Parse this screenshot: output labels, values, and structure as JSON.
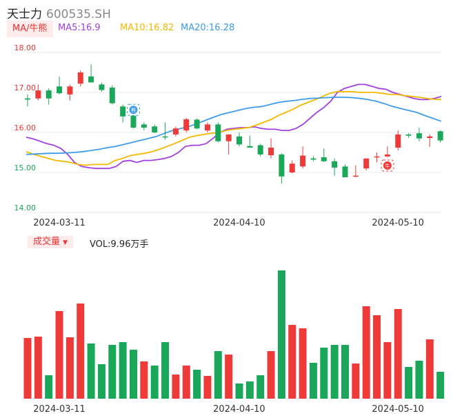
{
  "header": {
    "name": "天士力",
    "code": "600535.SH"
  },
  "ma_panel": {
    "tab_label": "MA/牛熊",
    "ma5": "MA5:16.9",
    "ma10": "MA10:16.82",
    "ma20": "MA20:16.28",
    "colors": {
      "ma5": "#a040e0",
      "ma10": "#f5b800",
      "ma20": "#3d9be9"
    }
  },
  "volume_panel": {
    "tab_label": "成交量",
    "dropdown": "▼",
    "vol_label": "VOL:9.96万手"
  },
  "chart_data": [
    {
      "type": "candlestick",
      "ylim": [
        14.0,
        18.0
      ],
      "yticks": [
        "18.00",
        "17.00",
        "16.00",
        "15.00",
        "14.00"
      ],
      "xticks": [
        {
          "label": "2024-03-11",
          "index": 0
        },
        {
          "label": "2024-04-10",
          "index": 17
        },
        {
          "label": "2024-05-10",
          "index": 32
        }
      ],
      "up_color": "#ef3a3a",
      "down_color": "#1aa75a",
      "markers": [
        {
          "index": 10,
          "symbol": "熊",
          "color": "#3d9be9"
        },
        {
          "index": 34,
          "symbol": "牛",
          "color": "#ef3a3a"
        }
      ],
      "candles": [
        {
          "o": 16.85,
          "h": 16.95,
          "l": 16.65,
          "c": 16.82
        },
        {
          "o": 16.85,
          "h": 17.2,
          "l": 16.8,
          "c": 17.05
        },
        {
          "o": 17.05,
          "h": 17.1,
          "l": 16.7,
          "c": 16.85
        },
        {
          "o": 17.15,
          "h": 17.4,
          "l": 16.95,
          "c": 16.98
        },
        {
          "o": 16.95,
          "h": 17.2,
          "l": 16.8,
          "c": 17.15
        },
        {
          "o": 17.22,
          "h": 17.55,
          "l": 17.15,
          "c": 17.5
        },
        {
          "o": 17.4,
          "h": 17.7,
          "l": 17.25,
          "c": 17.25
        },
        {
          "o": 17.2,
          "h": 17.25,
          "l": 17.02,
          "c": 17.06
        },
        {
          "o": 17.12,
          "h": 17.18,
          "l": 16.7,
          "c": 16.73
        },
        {
          "o": 16.65,
          "h": 16.7,
          "l": 16.25,
          "c": 16.4
        },
        {
          "o": 16.42,
          "h": 16.6,
          "l": 16.1,
          "c": 16.12
        },
        {
          "o": 16.2,
          "h": 16.25,
          "l": 16.05,
          "c": 16.12
        },
        {
          "o": 16.15,
          "h": 16.2,
          "l": 15.98,
          "c": 16.0
        },
        {
          "o": 15.9,
          "h": 16.25,
          "l": 15.82,
          "c": 15.88
        },
        {
          "o": 15.95,
          "h": 16.15,
          "l": 15.9,
          "c": 16.1
        },
        {
          "o": 16.05,
          "h": 16.36,
          "l": 16.0,
          "c": 16.33
        },
        {
          "o": 16.32,
          "h": 16.35,
          "l": 16.08,
          "c": 16.1
        },
        {
          "o": 16.05,
          "h": 16.25,
          "l": 16.0,
          "c": 16.2
        },
        {
          "o": 16.2,
          "h": 16.25,
          "l": 15.75,
          "c": 15.78
        },
        {
          "o": 15.78,
          "h": 15.95,
          "l": 15.45,
          "c": 15.95
        },
        {
          "o": 15.9,
          "h": 16.0,
          "l": 15.65,
          "c": 15.7
        },
        {
          "o": 15.66,
          "h": 15.92,
          "l": 15.62,
          "c": 15.62
        },
        {
          "o": 15.68,
          "h": 15.72,
          "l": 15.4,
          "c": 15.45
        },
        {
          "o": 15.43,
          "h": 15.85,
          "l": 15.35,
          "c": 15.62
        },
        {
          "o": 15.45,
          "h": 15.48,
          "l": 14.72,
          "c": 14.9
        },
        {
          "o": 15.0,
          "h": 15.3,
          "l": 14.98,
          "c": 15.22
        },
        {
          "o": 15.15,
          "h": 15.65,
          "l": 15.1,
          "c": 15.42
        },
        {
          "o": 15.35,
          "h": 15.4,
          "l": 15.28,
          "c": 15.32
        },
        {
          "o": 15.38,
          "h": 15.6,
          "l": 15.26,
          "c": 15.28
        },
        {
          "o": 15.28,
          "h": 15.35,
          "l": 14.92,
          "c": 15.12
        },
        {
          "o": 15.15,
          "h": 15.2,
          "l": 14.88,
          "c": 14.88
        },
        {
          "o": 14.9,
          "h": 15.18,
          "l": 14.88,
          "c": 14.92
        },
        {
          "o": 15.1,
          "h": 15.35,
          "l": 15.05,
          "c": 15.35
        },
        {
          "o": 15.38,
          "h": 15.5,
          "l": 15.25,
          "c": 15.4
        },
        {
          "o": 15.4,
          "h": 15.65,
          "l": 15.38,
          "c": 15.45
        },
        {
          "o": 15.62,
          "h": 16.05,
          "l": 15.55,
          "c": 15.95
        },
        {
          "o": 15.95,
          "h": 15.98,
          "l": 15.86,
          "c": 15.92
        },
        {
          "o": 15.98,
          "h": 16.12,
          "l": 15.78,
          "c": 15.85
        },
        {
          "o": 15.86,
          "h": 15.95,
          "l": 15.64,
          "c": 15.9
        },
        {
          "o": 16.03,
          "h": 16.05,
          "l": 15.75,
          "c": 15.8
        }
      ],
      "series": [
        {
          "name": "MA5",
          "color": "#a040e0",
          "values": [
            15.88,
            15.84,
            15.78,
            15.72,
            15.68,
            15.6,
            15.45,
            15.25,
            15.15,
            15.12,
            15.1,
            15.1,
            15.1,
            15.15,
            15.28,
            15.3,
            15.25,
            15.3,
            15.3,
            15.32,
            15.35,
            15.4,
            15.5,
            15.65,
            15.68,
            15.68,
            15.72,
            15.85,
            16.0,
            16.08,
            16.1,
            16.12,
            16.12,
            16.14,
            16.1,
            16.08,
            16.08,
            16.05,
            16.05,
            16.1,
            16.2,
            16.35,
            16.5,
            16.62,
            16.78,
            17.0,
            17.1,
            17.15,
            17.2,
            17.2,
            17.15,
            17.1,
            17.08,
            17.0,
            16.95,
            16.9,
            16.85,
            16.82,
            16.82,
            16.85,
            16.9
          ]
        },
        {
          "name": "MA10",
          "color": "#f5b800",
          "values": [
            15.52,
            15.45,
            15.4,
            15.35,
            15.3,
            15.28,
            15.25,
            15.2,
            15.18,
            15.2,
            15.2,
            15.2,
            15.3,
            15.35,
            15.42,
            15.45,
            15.48,
            15.52,
            15.58,
            15.65,
            15.72,
            15.8,
            15.88,
            15.92,
            15.95,
            15.98,
            16.0,
            16.05,
            16.08,
            16.1,
            16.12,
            16.18,
            16.25,
            16.32,
            16.42,
            16.5,
            16.58,
            16.68,
            16.75,
            16.82,
            16.9,
            16.98,
            17.02,
            17.02,
            17.02,
            17.0,
            17.0,
            17.0,
            16.98,
            16.95,
            16.95,
            16.92,
            16.9,
            16.88,
            16.85,
            16.83,
            16.82
          ]
        },
        {
          "name": "MA20",
          "color": "#3d9be9",
          "values": [
            15.45,
            15.46,
            15.47,
            15.48,
            15.48,
            15.49,
            15.5,
            15.52,
            15.55,
            15.58,
            15.62,
            15.65,
            15.7,
            15.75,
            15.8,
            15.85,
            15.9,
            15.98,
            16.05,
            16.1,
            16.15,
            16.22,
            16.3,
            16.38,
            16.45,
            16.5,
            16.55,
            16.6,
            16.63,
            16.65,
            16.7,
            16.75,
            16.78,
            16.8,
            16.83,
            16.85,
            16.86,
            16.87,
            16.88,
            16.88,
            16.87,
            16.85,
            16.82,
            16.78,
            16.72,
            16.65,
            16.6,
            16.55,
            16.5,
            16.42,
            16.35,
            16.28
          ]
        }
      ]
    },
    {
      "type": "bar",
      "title": "成交量",
      "values": [
        88,
        90,
        34,
        127,
        89,
        138,
        80,
        50,
        78,
        82,
        71,
        54,
        48,
        82,
        35,
        48,
        42,
        33,
        69,
        64,
        22,
        25,
        34,
        69,
        186,
        107,
        102,
        52,
        74,
        78,
        78,
        51,
        134,
        121,
        82,
        130,
        46,
        55,
        86,
        39
      ],
      "up": [
        true,
        true,
        false,
        true,
        true,
        true,
        false,
        false,
        false,
        false,
        false,
        true,
        false,
        false,
        true,
        true,
        false,
        true,
        false,
        true,
        false,
        false,
        false,
        true,
        false,
        true,
        true,
        false,
        false,
        false,
        false,
        true,
        true,
        true,
        true,
        true,
        false,
        false,
        true,
        false
      ]
    }
  ]
}
